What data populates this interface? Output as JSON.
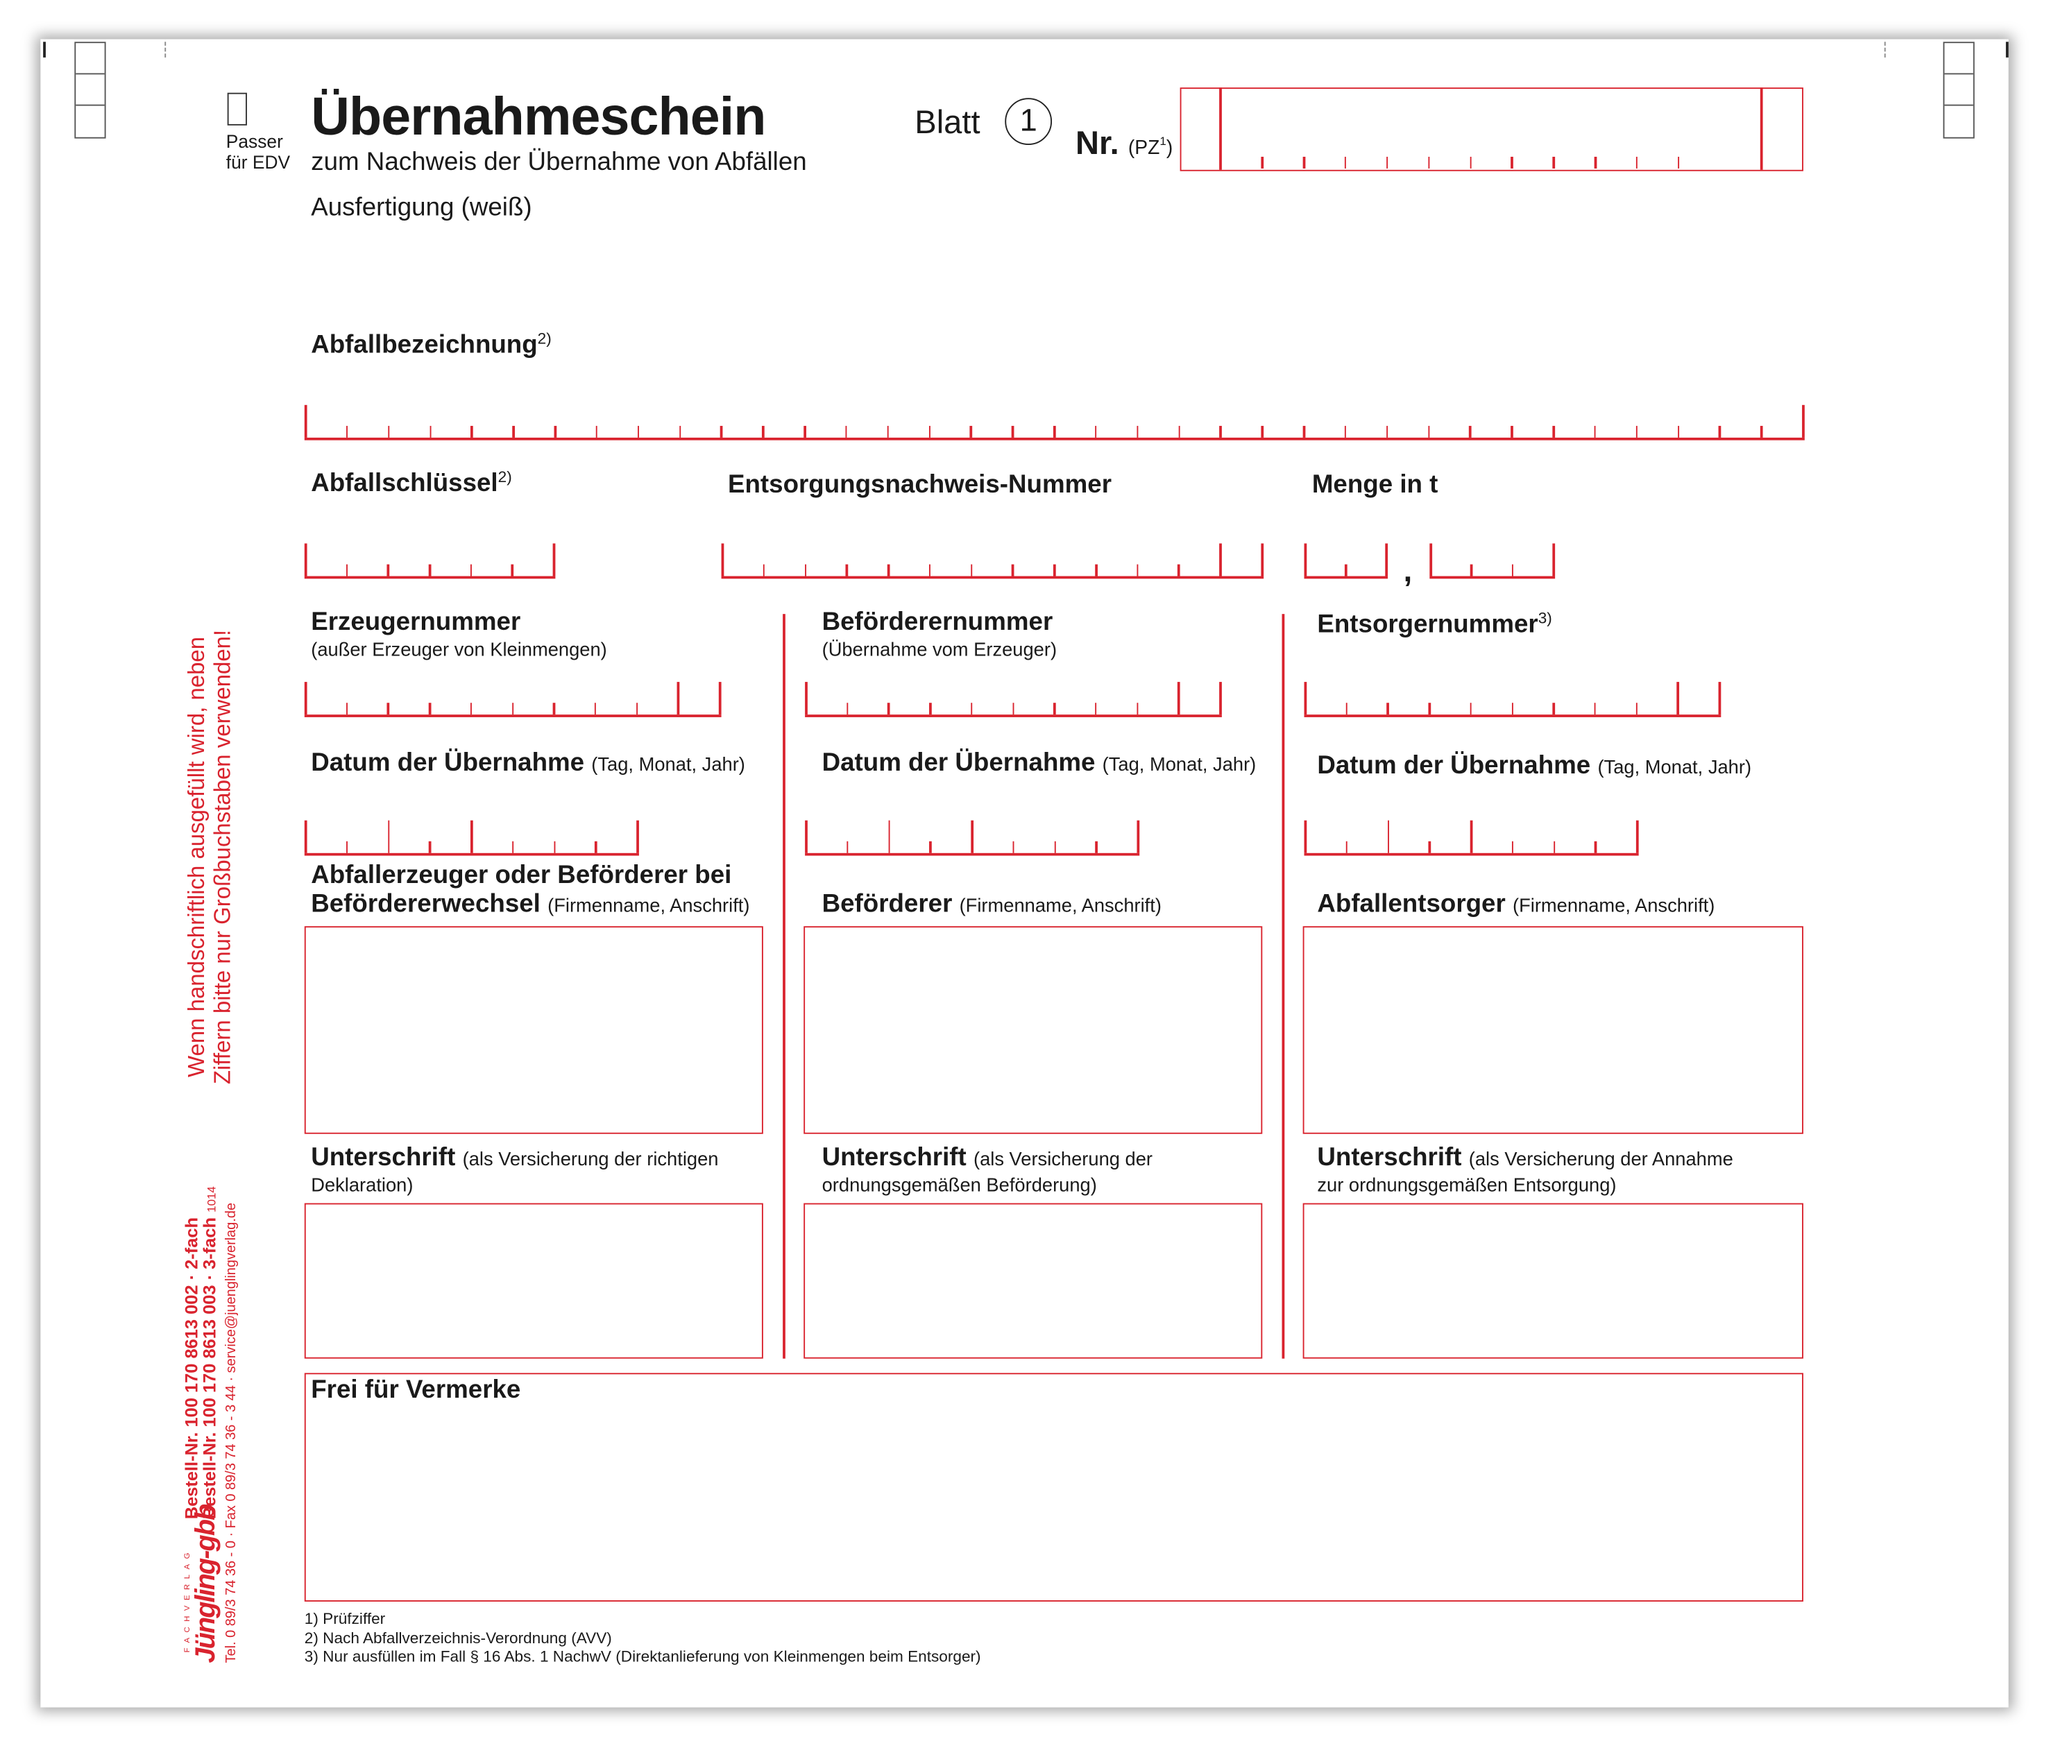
{
  "header": {
    "passer_label_1": "Passer",
    "passer_label_2": "für EDV",
    "title": "Übernahmeschein",
    "subtitle": "zum Nachweis der Übernahme von Abfällen",
    "copy_label": "Ausfertigung (weiß)",
    "sheet_label": "Blatt",
    "sheet_number": "1",
    "nr_label": "Nr.",
    "nr_note": "(PZ",
    "nr_note_sup": "1",
    "nr_note_close": ")"
  },
  "fields": {
    "waste_name": {
      "label": "Abfallbezeichnung",
      "sup": "2)"
    },
    "waste_key": {
      "label": "Abfallschlüssel",
      "sup": "2)"
    },
    "disposal_proof": {
      "label": "Entsorgungsnachweis-Nummer"
    },
    "quantity": {
      "label": "Menge in t",
      "separator": ","
    }
  },
  "columns": [
    {
      "number_label": "Erzeugernummer",
      "number_sub": "(außer Erzeuger von Kleinmengen)",
      "date_label": "Datum der Übernahme",
      "date_sub": "(Tag, Monat, Jahr)",
      "party_label_1": "Abfallerzeuger oder Beförderer bei",
      "party_label_2": "Befördererwechsel",
      "party_sub": "(Firmenname, Anschrift)",
      "sign_label": "Unterschrift",
      "sign_sub_1": "(als Versicherung der richtigen",
      "sign_sub_2": "Deklaration)"
    },
    {
      "number_label": "Beförderernummer",
      "number_sub": "(Übernahme vom Erzeuger)",
      "date_label": "Datum der Übernahme",
      "date_sub": "(Tag, Monat, Jahr)",
      "party_label_2": "Beförderer",
      "party_sub": "(Firmenname, Anschrift)",
      "sign_label": "Unterschrift",
      "sign_sub_1": "(als Versicherung der",
      "sign_sub_2": "ordnungsgemäßen Beförderung)"
    },
    {
      "number_label": "Entsorgernummer",
      "number_sup": "3)",
      "date_label": "Datum der Übernahme",
      "date_sub": "(Tag, Monat, Jahr)",
      "party_label_2": "Abfallentsorger",
      "party_sub": "(Firmenname, Anschrift)",
      "sign_label": "Unterschrift",
      "sign_sub_1": "(als Versicherung der Annahme",
      "sign_sub_2": "zur ordnungsgemäßen Entsorgung)"
    }
  ],
  "notes_box": {
    "label": "Frei für Vermerke"
  },
  "footnotes": [
    "1)  Prüfziffer",
    "2)  Nach Abfallverzeichnis-Verordnung (AVV)",
    "3)  Nur ausfüllen im Fall § 16 Abs. 1 NachwV (Direktanlieferung von Kleinmengen beim Entsorger)"
  ],
  "side_notice": {
    "line_1": "Wenn handschriftlich ausgefüllt wird, neben",
    "line_2": "Ziffern bitte nur Großbuchstaben verwenden!"
  },
  "publisher": {
    "logo_small": "FACHVERLAG",
    "logo": "Jüngling-gbb",
    "order_1": "Bestell-Nr.  100 170 8613 002 · 2-fach",
    "order_2": "Bestell-Nr.  100 170 8613 003 · 3-fach",
    "order_2_code": "1014",
    "contact": "Tel. 0 89/3 74 36 - 0 · Fax 0 89/3 74 36 - 3 44 · service@juenglingverlag.de"
  },
  "colors": {
    "form_red": "#d9232e",
    "text": "#1a1a1a"
  }
}
